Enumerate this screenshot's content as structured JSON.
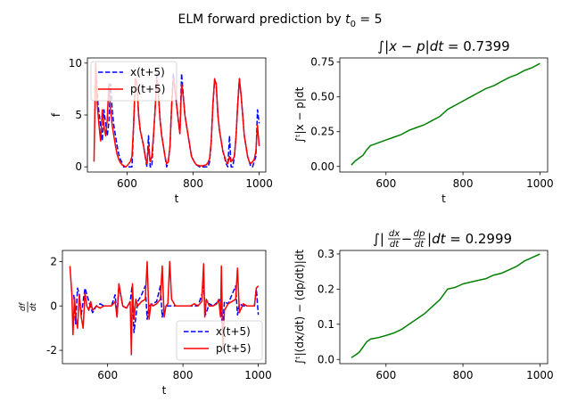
{
  "suptitle": {
    "main": "ELM forward prediction by ",
    "var": "t",
    "sub": "0",
    "rest": " = 5"
  },
  "chart_data": [
    {
      "type": "line",
      "title": "",
      "xlabel": "t",
      "ylabel": "f",
      "xlim": [
        480,
        1020
      ],
      "ylim": [
        -0.5,
        10.5
      ],
      "xticks": [
        600,
        800,
        1000
      ],
      "yticks": [
        0,
        5,
        10
      ],
      "grid": false,
      "legend": "upper-left",
      "series": [
        {
          "name": "x(t+5)",
          "color": "#0000ff",
          "style": "dashed",
          "x": [
            505,
            512,
            520,
            525,
            530,
            535,
            540,
            545,
            550,
            555,
            560,
            565,
            570,
            575,
            580,
            585,
            590,
            595,
            600,
            605,
            610,
            615,
            620,
            625,
            630,
            635,
            640,
            650,
            655,
            660,
            665,
            670,
            675,
            680,
            685,
            690,
            695,
            700,
            705,
            710,
            715,
            720,
            725,
            730,
            735,
            740,
            745,
            750,
            755,
            760,
            765,
            770,
            775,
            780,
            785,
            790,
            795,
            800,
            805,
            810,
            820,
            830,
            840,
            845,
            850,
            855,
            860,
            865,
            870,
            875,
            880,
            885,
            890,
            900,
            905,
            910,
            915,
            920,
            925,
            930,
            935,
            940,
            945,
            950,
            955,
            960,
            965,
            970,
            975,
            980,
            985,
            990,
            995,
            1000
          ],
          "y": [
            9.8,
            6.0,
            4.0,
            2.5,
            5.5,
            4.2,
            3.0,
            4.3,
            8.0,
            5.5,
            4.0,
            3.0,
            2.0,
            1.2,
            0.7,
            0.4,
            0.0,
            0.0,
            0.0,
            0.0,
            0.0,
            0.0,
            4.2,
            8.5,
            8.0,
            5.0,
            3.5,
            2.0,
            1.0,
            0.0,
            3.0,
            0.0,
            0.0,
            3.0,
            5.5,
            9.0,
            7.0,
            4.5,
            3.0,
            2.0,
            1.0,
            0.0,
            0.5,
            2.0,
            5.8,
            9.0,
            7.5,
            6.0,
            4.5,
            3.2,
            9.0,
            7.0,
            5.0,
            4.0,
            3.0,
            2.0,
            1.0,
            0.7,
            0.4,
            0.2,
            0.0,
            0.0,
            0.0,
            0.0,
            0.5,
            2.5,
            6.0,
            8.3,
            8.0,
            5.0,
            3.5,
            2.5,
            1.5,
            0.3,
            0.0,
            3.0,
            0.0,
            0.0,
            1.0,
            3.0,
            6.0,
            8.5,
            7.0,
            5.0,
            3.0,
            2.0,
            1.0,
            0.5,
            0.0,
            0.0,
            0.5,
            1.0,
            5.5,
            4.2
          ]
        },
        {
          "name": "p(t+5)",
          "color": "#ff0000",
          "style": "solid",
          "x": [
            500,
            505,
            510,
            515,
            520,
            525,
            530,
            535,
            540,
            545,
            550,
            555,
            560,
            565,
            570,
            575,
            580,
            585,
            590,
            595,
            600,
            605,
            610,
            615,
            620,
            625,
            630,
            635,
            640,
            650,
            655,
            660,
            665,
            670,
            675,
            680,
            685,
            690,
            695,
            700,
            705,
            710,
            715,
            720,
            725,
            730,
            735,
            740,
            745,
            750,
            755,
            760,
            765,
            770,
            775,
            780,
            785,
            790,
            795,
            800,
            805,
            810,
            820,
            830,
            840,
            845,
            850,
            855,
            860,
            865,
            870,
            875,
            880,
            885,
            890,
            900,
            905,
            910,
            915,
            920,
            925,
            930,
            935,
            940,
            945,
            950,
            955,
            960,
            965,
            970,
            975,
            980,
            985,
            990,
            995,
            1000
          ],
          "y": [
            0.5,
            10.0,
            6.0,
            4.0,
            2.5,
            5.5,
            4.0,
            3.0,
            4.5,
            8.0,
            5.5,
            4.0,
            3.0,
            2.0,
            1.2,
            0.7,
            0.4,
            0.2,
            0.1,
            0.0,
            0.1,
            0.3,
            0.5,
            1.0,
            4.2,
            8.5,
            8.0,
            5.0,
            3.5,
            2.0,
            1.0,
            0.3,
            2.0,
            0.5,
            1.0,
            3.0,
            5.5,
            8.5,
            7.0,
            4.5,
            3.0,
            2.0,
            1.0,
            0.3,
            0.5,
            2.0,
            5.8,
            8.5,
            7.5,
            6.0,
            4.5,
            3.2,
            8.0,
            6.8,
            5.0,
            4.0,
            3.0,
            2.0,
            1.0,
            0.7,
            0.4,
            0.2,
            0.1,
            0.1,
            0.2,
            0.4,
            0.8,
            2.5,
            6.0,
            8.5,
            8.0,
            5.0,
            3.5,
            2.5,
            1.5,
            0.5,
            0.3,
            1.0,
            0.5,
            0.7,
            1.0,
            3.0,
            6.0,
            8.5,
            7.0,
            5.0,
            3.0,
            2.0,
            1.0,
            0.5,
            0.3,
            0.5,
            0.7,
            1.5,
            4.0,
            2.0
          ]
        }
      ]
    },
    {
      "type": "line",
      "title_parts": [
        "∫|",
        "x − p",
        "|",
        "dt",
        " = 0.7399"
      ],
      "xlabel": "t",
      "ylabel": "∫ᵗ|x − p|dt",
      "xlim": [
        480,
        1020
      ],
      "ylim": [
        -0.04,
        0.78
      ],
      "xticks": [
        600,
        800,
        1000
      ],
      "yticks": [
        0.0,
        0.25,
        0.5,
        0.75
      ],
      "ytick_labels": [
        "0.00",
        "0.25",
        "0.50",
        "0.75"
      ],
      "grid": false,
      "series": [
        {
          "color": "#008000",
          "style": "solid",
          "x": [
            510,
            520,
            530,
            540,
            550,
            560,
            570,
            580,
            600,
            620,
            640,
            660,
            680,
            700,
            720,
            740,
            760,
            780,
            800,
            820,
            840,
            860,
            880,
            900,
            920,
            940,
            960,
            980,
            1000
          ],
          "y": [
            0.01,
            0.04,
            0.06,
            0.08,
            0.12,
            0.15,
            0.16,
            0.17,
            0.19,
            0.21,
            0.23,
            0.26,
            0.28,
            0.3,
            0.33,
            0.36,
            0.41,
            0.44,
            0.47,
            0.5,
            0.53,
            0.56,
            0.58,
            0.61,
            0.64,
            0.66,
            0.69,
            0.71,
            0.74
          ]
        }
      ]
    },
    {
      "type": "line",
      "title": "",
      "xlabel": "t",
      "ylabel_parts": [
        "df",
        "dt"
      ],
      "xlim": [
        480,
        1020
      ],
      "ylim": [
        -2.6,
        2.5
      ],
      "xticks": [
        600,
        800,
        1000
      ],
      "yticks": [
        -2,
        0,
        2
      ],
      "grid": false,
      "legend": "lower-right",
      "series": [
        {
          "name": "x(t+5)",
          "color": "#0000ff",
          "style": "dashed",
          "x": [
            510,
            515,
            520,
            525,
            530,
            540,
            550,
            560,
            570,
            580,
            590,
            600,
            610,
            620,
            625,
            630,
            640,
            650,
            660,
            665,
            670,
            680,
            690,
            700,
            705,
            710,
            720,
            730,
            740,
            745,
            750,
            760,
            770,
            780,
            790,
            800,
            820,
            840,
            850,
            855,
            860,
            870,
            880,
            900,
            905,
            910,
            920,
            930,
            940,
            945,
            950,
            960,
            970,
            980,
            990,
            995,
            1000
          ],
          "y": [
            0.5,
            -0.8,
            0.8,
            0.5,
            -0.4,
            0.8,
            0.2,
            -0.3,
            0.0,
            0.1,
            0.0,
            0.0,
            0.0,
            0.5,
            -0.5,
            0.9,
            0.0,
            -0.1,
            0.2,
            0.9,
            -1.2,
            0.2,
            0.5,
            0.9,
            -0.6,
            0.0,
            0.1,
            0.2,
            0.9,
            -0.5,
            0.0,
            0.0,
            0.0,
            0.0,
            0.0,
            0.0,
            0.0,
            0.0,
            0.5,
            0.9,
            -0.4,
            0.1,
            0.0,
            0.3,
            -1.1,
            0.2,
            0.1,
            0.5,
            0.9,
            -0.4,
            0.1,
            0.0,
            0.0,
            0.0,
            0.0,
            0.8,
            -0.4
          ]
        },
        {
          "name": "p(t+5)",
          "color": "#ff0000",
          "style": "solid",
          "x": [
            500,
            505,
            508,
            512,
            515,
            520,
            525,
            530,
            535,
            540,
            545,
            550,
            555,
            560,
            570,
            580,
            590,
            600,
            610,
            620,
            625,
            630,
            640,
            650,
            660,
            663,
            666,
            670,
            675,
            680,
            690,
            700,
            705,
            710,
            715,
            720,
            730,
            740,
            745,
            750,
            755,
            760,
            765,
            770,
            780,
            790,
            800,
            810,
            820,
            830,
            840,
            850,
            855,
            858,
            862,
            870,
            880,
            890,
            895,
            900,
            902,
            906,
            910,
            920,
            930,
            940,
            945,
            950,
            960,
            970,
            980,
            990,
            995,
            1000
          ],
          "y": [
            1.8,
            0.5,
            -1.3,
            0.4,
            -0.4,
            -1.0,
            0.5,
            -0.5,
            -1.0,
            0.6,
            0.0,
            -0.2,
            0.2,
            -0.2,
            0.0,
            -0.1,
            0.0,
            0.0,
            0.0,
            0.2,
            -0.5,
            1.0,
            0.0,
            -0.1,
            0.2,
            -2.2,
            1.0,
            -0.6,
            0.3,
            0.0,
            0.2,
            0.3,
            2.0,
            -0.6,
            0.1,
            0.0,
            0.1,
            0.3,
            1.8,
            -0.5,
            0.0,
            0.1,
            2.0,
            0.3,
            0.0,
            0.0,
            0.0,
            0.0,
            0.0,
            0.1,
            0.0,
            0.2,
            1.9,
            -0.5,
            0.3,
            0.0,
            0.0,
            0.1,
            0.3,
            -0.5,
            1.8,
            -2.0,
            -0.2,
            0.1,
            0.2,
            0.3,
            1.7,
            -0.3,
            0.1,
            0.0,
            0.0,
            0.0,
            0.8,
            0.9
          ]
        }
      ]
    },
    {
      "type": "line",
      "title_parts": [
        "∫|",
        "dx",
        "dt",
        "−",
        "dp",
        "dt",
        "|",
        "dt",
        " = 0.2999"
      ],
      "xlabel": "",
      "ylabel": "∫ᵗ|(dx/dt) − (dp/dt)|dt",
      "xlim": [
        480,
        1020
      ],
      "ylim": [
        -0.012,
        0.31
      ],
      "xticks": [
        600,
        800,
        1000
      ],
      "yticks": [
        0.0,
        0.1,
        0.2,
        0.3
      ],
      "ytick_labels": [
        "0.0",
        "0.1",
        "0.2",
        "0.3"
      ],
      "grid": false,
      "series": [
        {
          "color": "#008000",
          "style": "solid",
          "x": [
            510,
            520,
            530,
            540,
            550,
            560,
            570,
            580,
            600,
            620,
            640,
            660,
            680,
            700,
            720,
            740,
            760,
            780,
            800,
            820,
            840,
            860,
            880,
            900,
            920,
            940,
            960,
            980,
            1000
          ],
          "y": [
            0.005,
            0.012,
            0.02,
            0.035,
            0.05,
            0.058,
            0.06,
            0.062,
            0.068,
            0.075,
            0.085,
            0.1,
            0.115,
            0.13,
            0.15,
            0.17,
            0.2,
            0.205,
            0.215,
            0.22,
            0.225,
            0.23,
            0.24,
            0.245,
            0.255,
            0.265,
            0.28,
            0.29,
            0.3
          ]
        }
      ]
    }
  ]
}
